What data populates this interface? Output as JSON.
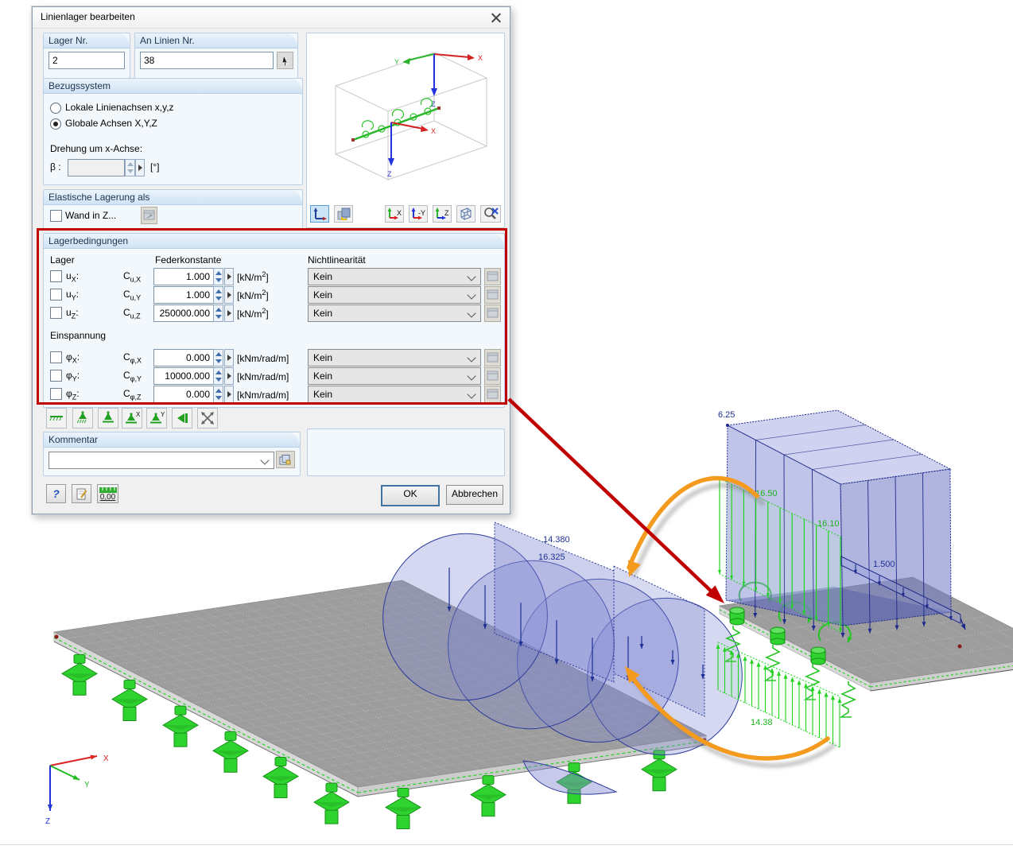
{
  "window": {
    "title": "Linienlager bearbeiten"
  },
  "labels": {
    "colon": ":"
  },
  "groups": {
    "lager_nr": {
      "title": "Lager Nr.",
      "value": "2"
    },
    "an_linien": {
      "title": "An Linien Nr.",
      "value": "38"
    },
    "bezugssystem": {
      "title": "Bezugssystem",
      "radio_local": "Lokale Linienachsen x,y,z",
      "radio_global": "Globale Achsen X,Y,Z",
      "rotation": "Drehung um x-Achse:",
      "beta": "β :",
      "beta_value": "",
      "deg_unit": "[°]"
    },
    "elastisch": {
      "title": "Elastische Lagerung als",
      "wand": "Wand in Z..."
    },
    "bedingungen": {
      "title": "Lagerbedingungen",
      "col1": "Lager",
      "col2": "Federkonstante",
      "col3": "Nichtlinearität",
      "einspannung": "Einspannung",
      "rows": [
        {
          "dof": "u",
          "axis": "X",
          "cbase": "C",
          "csub": "u,X",
          "value": "1.000",
          "ub": "[kN/m",
          "us": "2",
          "ue": "]",
          "nl": "Kein"
        },
        {
          "dof": "u",
          "axis": "Y",
          "cbase": "C",
          "csub": "u,Y",
          "value": "1.000",
          "ub": "[kN/m",
          "us": "2",
          "ue": "]",
          "nl": "Kein"
        },
        {
          "dof": "u",
          "axis": "Z",
          "cbase": "C",
          "csub": "u,Z",
          "value": "250000.000",
          "ub": "[kN/m",
          "us": "2",
          "ue": "]",
          "nl": "Kein"
        },
        {
          "dof": "φ",
          "axis": "X",
          "cbase": "C",
          "csub": "φ,X",
          "value": "0.000",
          "ub": "[kNm/rad/m]",
          "us": "",
          "ue": "",
          "nl": "Kein"
        },
        {
          "dof": "φ",
          "axis": "Y",
          "cbase": "C",
          "csub": "φ,Y",
          "value": "10000.000",
          "ub": "[kNm/rad/m]",
          "us": "",
          "ue": "",
          "nl": "Kein"
        },
        {
          "dof": "φ",
          "axis": "Z",
          "cbase": "C",
          "csub": "φ,Z",
          "value": "0.000",
          "ub": "[kNm/rad/m]",
          "us": "",
          "ue": "",
          "nl": "Kein"
        }
      ]
    },
    "kommentar": {
      "title": "Kommentar",
      "value": ""
    }
  },
  "preview": {
    "ax_x": "X",
    "ax_y": "Y",
    "ax_z": "Z",
    "local_x": "X",
    "local_z": "Z",
    "view_x": "X",
    "view_y": "-Y",
    "view_z": "Z"
  },
  "buttons": {
    "ok": "OK",
    "cancel": "Abbrechen",
    "help": "?",
    "units": "0,00"
  },
  "icons": {
    "support_x": "X",
    "support_y": "Y"
  },
  "scene": {
    "labels": {
      "box_value": "6.25",
      "wall_top": "16.50",
      "wall_bottom": "16.10",
      "edge_load": "1.500",
      "dome_top": "14.380",
      "dome_mid": "16.325",
      "uplift": "14.38",
      "axis_x": "X",
      "axis_y": "Y",
      "axis_z": "Z"
    },
    "colors": {
      "highlight_red": "#c00000",
      "arrow_orange": "#f49a1f",
      "support_green": "#2fd32f",
      "diagram_blue": "#7b84cf",
      "label_navy": "#1d2f96",
      "label_green": "#1db41d"
    }
  }
}
